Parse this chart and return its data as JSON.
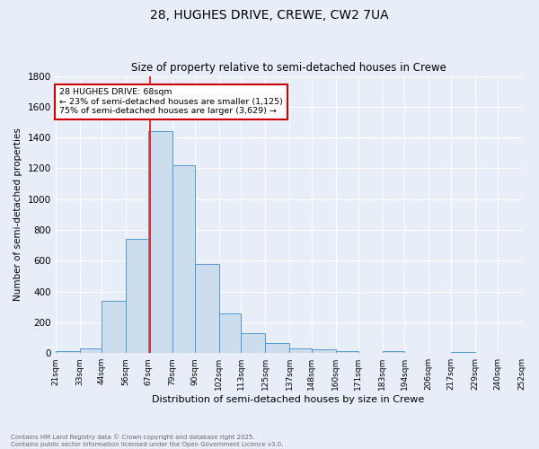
{
  "title1": "28, HUGHES DRIVE, CREWE, CW2 7UA",
  "title2": "Size of property relative to semi-detached houses in Crewe",
  "xlabel": "Distribution of semi-detached houses by size in Crewe",
  "ylabel": "Number of semi-detached properties",
  "footer1": "Contains HM Land Registry data © Crown copyright and database right 2025.",
  "footer2": "Contains public sector information licensed under the Open Government Licence v3.0.",
  "bin_edges": [
    21,
    33,
    44,
    56,
    67,
    79,
    90,
    102,
    113,
    125,
    137,
    148,
    160,
    171,
    183,
    194,
    206,
    217,
    229,
    240,
    252
  ],
  "bar_heights": [
    15,
    30,
    340,
    740,
    1440,
    1220,
    580,
    260,
    130,
    65,
    30,
    25,
    15,
    0,
    15,
    0,
    0,
    5,
    0,
    0,
    15
  ],
  "bar_color": "#ccdded",
  "bar_edge_color": "#5599cc",
  "red_line_x": 68,
  "ylim": [
    0,
    1800
  ],
  "annotation_text": "28 HUGHES DRIVE: 68sqm\n← 23% of semi-detached houses are smaller (1,125)\n75% of semi-detached houses are larger (3,629) →",
  "annotation_box_color": "#ffffff",
  "annotation_box_edge": "#cc0000",
  "bg_color": "#e8eef8",
  "grid_color": "#ffffff",
  "tick_labels": [
    "21sqm",
    "33sqm",
    "44sqm",
    "56sqm",
    "67sqm",
    "79sqm",
    "90sqm",
    "102sqm",
    "113sqm",
    "125sqm",
    "137sqm",
    "148sqm",
    "160sqm",
    "171sqm",
    "183sqm",
    "194sqm",
    "206sqm",
    "217sqm",
    "229sqm",
    "240sqm",
    "252sqm"
  ]
}
